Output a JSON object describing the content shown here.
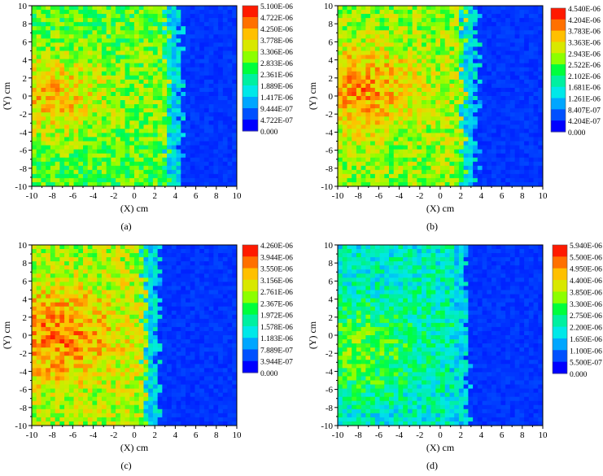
{
  "chart_data": [
    {
      "type": "heatmap",
      "caption": "(a)",
      "xlabel": "(X) cm",
      "ylabel": "(Y) cm",
      "xlim": [
        -10,
        10
      ],
      "ylim": [
        -10,
        10
      ],
      "xticks": [
        "-10",
        "-8",
        "-6",
        "-4",
        "-2",
        "0",
        "2",
        "4",
        "6",
        "8",
        "10"
      ],
      "yticks": [
        "10",
        "8",
        "6",
        "4",
        "2",
        "0",
        "-2",
        "-4",
        "-6",
        "-8",
        "-10"
      ],
      "colorbar_labels": [
        "5.100E-06",
        "4.722E-06",
        "4.250E-06",
        "3.778E-06",
        "3.306E-06",
        "2.833E-06",
        "2.361E-06",
        "1.889E-06",
        "1.417E-06",
        "9.444E-07",
        "4.722E-07",
        "0.000"
      ],
      "field_edge_x_cm": 4,
      "hotspot": {
        "x_cm": -8,
        "y_cm": 0
      },
      "intensity": 0.6
    },
    {
      "type": "heatmap",
      "caption": "(b)",
      "xlabel": "(X) cm",
      "ylabel": "(Y) cm",
      "xlim": [
        -10,
        10
      ],
      "ylim": [
        -10,
        10
      ],
      "xticks": [
        "-10",
        "-8",
        "-6",
        "-4",
        "-2",
        "0",
        "2",
        "4",
        "6",
        "8",
        "10"
      ],
      "yticks": [
        "10",
        "8",
        "6",
        "4",
        "2",
        "0",
        "-2",
        "-4",
        "-6",
        "-8",
        "-10"
      ],
      "colorbar_labels": [
        "4.540E-06",
        "4.204E-06",
        "3.783E-06",
        "3.363E-06",
        "2.943E-06",
        "2.522E-06",
        "2.102E-06",
        "1.681E-06",
        "1.261E-06",
        "8.407E-07",
        "4.204E-07",
        "0.000"
      ],
      "field_edge_x_cm": 3,
      "hotspot": {
        "x_cm": -7.5,
        "y_cm": 1
      },
      "intensity": 0.66
    },
    {
      "type": "heatmap",
      "caption": "(c)",
      "xlabel": "(X) cm",
      "ylabel": "(Y) cm",
      "xlim": [
        -10,
        10
      ],
      "ylim": [
        -10,
        10
      ],
      "xticks": [
        "-10",
        "-8",
        "-6",
        "-4",
        "-2",
        "0",
        "2",
        "4",
        "6",
        "8",
        "10"
      ],
      "yticks": [
        "10",
        "8",
        "6",
        "4",
        "2",
        "0",
        "-2",
        "-4",
        "-6",
        "-8",
        "-10"
      ],
      "colorbar_labels": [
        "4.260E-06",
        "3.944E-06",
        "3.550E-06",
        "3.156E-06",
        "2.761E-06",
        "2.367E-06",
        "1.972E-06",
        "1.578E-06",
        "1.183E-06",
        "7.889E-07",
        "3.944E-07",
        "0.000"
      ],
      "field_edge_x_cm": 1.8,
      "hotspot": {
        "x_cm": -7.5,
        "y_cm": 0
      },
      "intensity": 0.7
    },
    {
      "type": "heatmap",
      "caption": "(d)",
      "xlabel": "(X) cm",
      "ylabel": "(Y) cm",
      "xlim": [
        -10,
        10
      ],
      "ylim": [
        -10,
        10
      ],
      "xticks": [
        "-10",
        "-8",
        "-6",
        "-4",
        "-2",
        "0",
        "2",
        "4",
        "6",
        "8",
        "10"
      ],
      "yticks": [
        "10",
        "8",
        "6",
        "4",
        "2",
        "0",
        "-2",
        "-4",
        "-6",
        "-8",
        "-10"
      ],
      "colorbar_labels": [
        "5.940E-06",
        "5.500E-06",
        "4.950E-06",
        "4.400E-06",
        "3.850E-06",
        "3.300E-06",
        "2.750E-06",
        "2.200E-06",
        "1.650E-06",
        "1.100E-06",
        "5.500E-07",
        "0.000"
      ],
      "field_edge_x_cm": 2,
      "hotspot": {
        "x_cm": -8,
        "y_cm": -2
      },
      "intensity": 0.4
    }
  ],
  "colors": {
    "scale": [
      "#0000ff",
      "#0050ff",
      "#00a6ff",
      "#00e8e8",
      "#00f0a0",
      "#00ff3c",
      "#8cff00",
      "#d8e800",
      "#ffc000",
      "#ff7000",
      "#ff1a00"
    ],
    "outside_field": "#1e50f5"
  }
}
